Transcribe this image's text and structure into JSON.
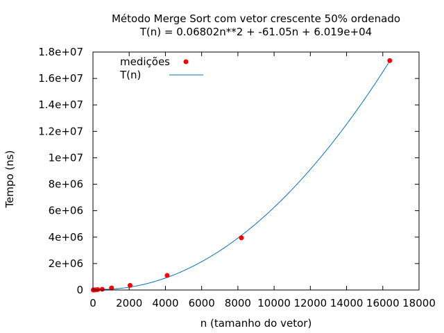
{
  "chart_data": {
    "type": "scatter",
    "title": "Método Merge Sort com vetor crescente 50% ordenado",
    "subtitle": "T(n) = 0.06802n**2 + -61.05n + 6.019e+04",
    "xlabel": "n (tamanho do vetor)",
    "ylabel": "Tempo (ns)",
    "xlim": [
      0,
      18000
    ],
    "ylim": [
      0,
      18000000
    ],
    "x_ticks": [
      0,
      2000,
      4000,
      6000,
      8000,
      10000,
      12000,
      14000,
      16000,
      18000
    ],
    "x_tick_labels": [
      "0",
      "2000",
      "4000",
      "6000",
      "8000",
      "10000",
      "12000",
      "14000",
      "16000",
      "18000"
    ],
    "y_ticks": [
      0,
      2000000,
      4000000,
      6000000,
      8000000,
      10000000,
      12000000,
      14000000,
      16000000,
      18000000
    ],
    "y_tick_labels": [
      "0",
      "2e+06",
      "4e+06",
      "6e+06",
      "8e+06",
      "1e+07",
      "1.2e+07",
      "1.4e+07",
      "1.6e+07",
      "1.8e+07"
    ],
    "grid": false,
    "legend_position": "top-left",
    "series": [
      {
        "name": "medições",
        "type": "scatter",
        "color": "#ff0000",
        "x": [
          16,
          32,
          64,
          128,
          256,
          512,
          1024,
          2048,
          4096,
          8192,
          16384
        ],
        "y": [
          1000,
          2000,
          4000,
          10000,
          25000,
          55000,
          150000,
          350000,
          1100000,
          3950000,
          17350000
        ]
      },
      {
        "name": "T(n)",
        "type": "line",
        "color": "#0072bd",
        "coefficients": {
          "a": 0.06802,
          "b": -61.05,
          "c": 60190
        },
        "x_range": [
          0,
          16384
        ]
      }
    ]
  }
}
